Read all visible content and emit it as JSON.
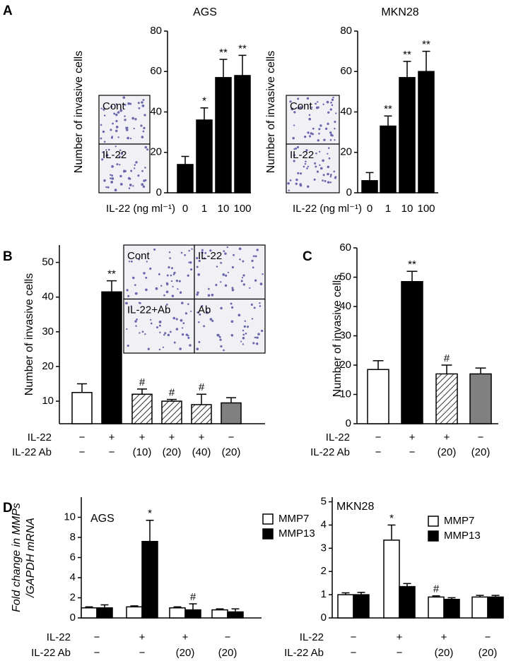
{
  "chart_data": [
    {
      "type": "bar",
      "panel": "A",
      "title": "AGS",
      "ylabel": "Number of invasive cells",
      "xlabel": "IL-22 (ng ml⁻¹)",
      "categories": [
        "0",
        "1",
        "10",
        "100"
      ],
      "values": [
        14,
        36,
        57,
        58
      ],
      "errors": [
        4,
        6,
        9,
        10
      ],
      "annotations": [
        null,
        "*",
        "**",
        "**"
      ],
      "color": "#000000",
      "ylim": [
        0,
        80
      ],
      "yticks": [
        0,
        20,
        40,
        60,
        80
      ],
      "insets": [
        "Cont",
        "IL-22"
      ]
    },
    {
      "type": "bar",
      "title": "MKN28",
      "ylabel": "Number of invasive cells",
      "xlabel": "IL-22 (ng ml⁻¹)",
      "categories": [
        "0",
        "1",
        "10",
        "100"
      ],
      "values": [
        6,
        33,
        57,
        60
      ],
      "errors": [
        4,
        5,
        8,
        10
      ],
      "annotations": [
        null,
        "**",
        "**",
        "**"
      ],
      "color": "#000000",
      "ylim": [
        0,
        80
      ],
      "yticks": [
        0,
        20,
        40,
        60,
        80
      ],
      "insets": [
        "Cont",
        "IL-22"
      ]
    },
    {
      "type": "bar",
      "panel": "B",
      "ylabel": "Number of invasive cells",
      "values": [
        12.5,
        41.5,
        12,
        10,
        9,
        9.5
      ],
      "errors": [
        2.5,
        3.2,
        1.5,
        0.5,
        3,
        1.5
      ],
      "fills": [
        "#ffffff",
        "#000000",
        "hatched",
        "hatched",
        "hatched",
        "#808080"
      ],
      "annotations": [
        null,
        "**",
        "#",
        "#",
        "#",
        null
      ],
      "ylim": [
        3.5,
        55
      ],
      "yticks": [
        10,
        20,
        30,
        40,
        50
      ],
      "rows": [
        {
          "label": "IL-22",
          "values": [
            "−",
            "+",
            "+",
            "+",
            "+",
            "−"
          ]
        },
        {
          "label": "IL-22 Ab",
          "values": [
            "−",
            "−",
            "(10)",
            "(20)",
            "(40)",
            "(20)"
          ]
        }
      ],
      "insets": [
        "Cont",
        "IL-22",
        "IL-22+Ab",
        "Ab"
      ]
    },
    {
      "type": "bar",
      "panel": "C",
      "ylabel": "Number of invasive cells",
      "values": [
        18.5,
        48.5,
        17,
        17
      ],
      "errors": [
        3,
        3.5,
        3,
        2
      ],
      "fills": [
        "#ffffff",
        "#000000",
        "hatched",
        "#808080"
      ],
      "annotations": [
        null,
        "**",
        "#",
        null
      ],
      "ylim": [
        0,
        60
      ],
      "yticks": [
        0,
        10,
        20,
        30,
        40,
        50,
        60
      ],
      "rows": [
        {
          "label": "IL-22",
          "values": [
            "−",
            "+",
            "+",
            "−"
          ]
        },
        {
          "label": "IL-22 Ab",
          "values": [
            "−",
            "−",
            "(20)",
            "(20)"
          ]
        }
      ]
    },
    {
      "type": "bar",
      "panel": "D",
      "title": "AGS",
      "ylabel": [
        "Fold change in MMPs",
        "/GAPDH mRNA"
      ],
      "series": [
        {
          "name": "MMP7",
          "color": "#ffffff",
          "values": [
            1.0,
            1.1,
            1.0,
            0.8
          ],
          "errors": [
            0.1,
            0.1,
            0.1,
            0.1
          ],
          "annotations": [
            null,
            null,
            null,
            null
          ]
        },
        {
          "name": "MMP13",
          "color": "#000000",
          "values": [
            1.0,
            7.6,
            0.8,
            0.6
          ],
          "errors": [
            0.3,
            2.1,
            0.6,
            0.3
          ],
          "annotations": [
            null,
            "*",
            "#",
            null
          ]
        }
      ],
      "ylim": [
        0,
        12
      ],
      "yticks": [
        0,
        2,
        4,
        6,
        8,
        10
      ],
      "rows": [
        {
          "label": "IL-22",
          "values": [
            "−",
            "+",
            "+",
            "−"
          ]
        },
        {
          "label": "IL-22 Ab",
          "values": [
            "−",
            "−",
            "(20)",
            "(20)"
          ]
        }
      ]
    },
    {
      "type": "bar",
      "title": "MKN28",
      "series": [
        {
          "name": "MMP7",
          "color": "#ffffff",
          "values": [
            1.0,
            3.35,
            0.9,
            0.9
          ],
          "errors": [
            0.08,
            0.65,
            0.05,
            0.07
          ],
          "annotations": [
            null,
            "*",
            "#",
            null
          ]
        },
        {
          "name": "MMP13",
          "color": "#000000",
          "values": [
            1.0,
            1.35,
            0.8,
            0.9
          ],
          "errors": [
            0.1,
            0.13,
            0.07,
            0.07
          ],
          "annotations": [
            null,
            null,
            null,
            null
          ]
        }
      ],
      "ylim": [
        0,
        5.2
      ],
      "yticks": [
        0,
        1,
        2,
        3,
        4,
        5
      ],
      "rows": [
        {
          "label": "IL-22",
          "values": [
            "−",
            "+",
            "+",
            "−"
          ]
        },
        {
          "label": "IL-22 Ab",
          "values": [
            "−",
            "−",
            "(20)",
            "(20)"
          ]
        }
      ]
    }
  ]
}
